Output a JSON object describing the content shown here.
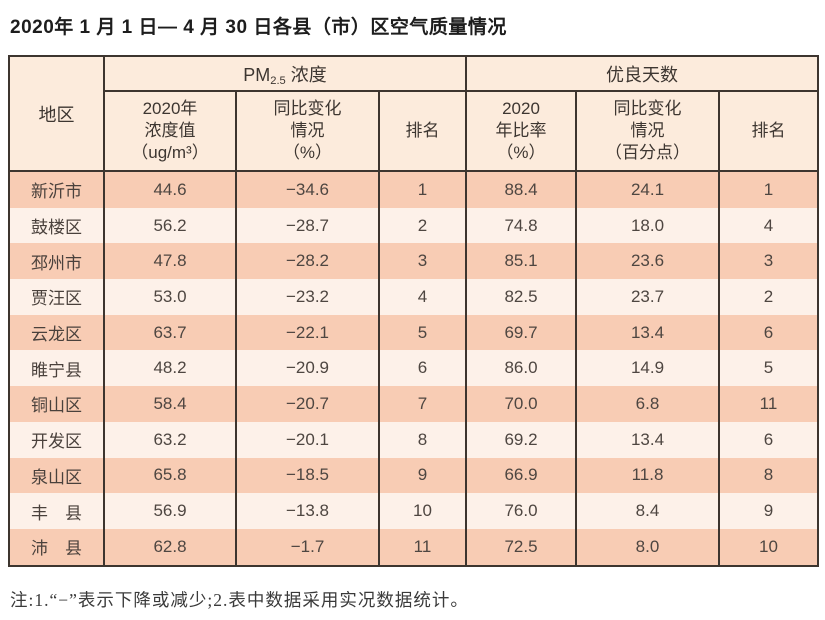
{
  "title": "2020年 1 月 1 日— 4 月 30 日各县（市）区空气质量情况",
  "note": "注:1.“−”表示下降或减少;2.表中数据采用实况数据统计。",
  "table": {
    "header": {
      "region": "地区",
      "pm_group": {
        "prefix": "PM",
        "sub": "2.5",
        "suffix": " 浓度"
      },
      "good_group": "优良天数",
      "pm_value": "2020年\n浓度值\n（ug/m³）",
      "pm_change": "同比变化\n情况\n（%）",
      "pm_rank": "排名",
      "good_rate": "2020\n年比率\n（%）",
      "good_change": "同比变化\n情况\n（百分点）",
      "good_rank": "排名"
    },
    "rows": [
      {
        "region": "新沂市",
        "pm_value": "44.6",
        "pm_change": "−34.6",
        "pm_rank": "1",
        "good_rate": "88.4",
        "good_change": "24.1",
        "good_rank": "1"
      },
      {
        "region": "鼓楼区",
        "pm_value": "56.2",
        "pm_change": "−28.7",
        "pm_rank": "2",
        "good_rate": "74.8",
        "good_change": "18.0",
        "good_rank": "4"
      },
      {
        "region": "邳州市",
        "pm_value": "47.8",
        "pm_change": "−28.2",
        "pm_rank": "3",
        "good_rate": "85.1",
        "good_change": "23.6",
        "good_rank": "3"
      },
      {
        "region": "贾汪区",
        "pm_value": "53.0",
        "pm_change": "−23.2",
        "pm_rank": "4",
        "good_rate": "82.5",
        "good_change": "23.7",
        "good_rank": "2"
      },
      {
        "region": "云龙区",
        "pm_value": "63.7",
        "pm_change": "−22.1",
        "pm_rank": "5",
        "good_rate": "69.7",
        "good_change": "13.4",
        "good_rank": "6"
      },
      {
        "region": "睢宁县",
        "pm_value": "48.2",
        "pm_change": "−20.9",
        "pm_rank": "6",
        "good_rate": "86.0",
        "good_change": "14.9",
        "good_rank": "5"
      },
      {
        "region": "铜山区",
        "pm_value": "58.4",
        "pm_change": "−20.7",
        "pm_rank": "7",
        "good_rate": "70.0",
        "good_change": "6.8",
        "good_rank": "11"
      },
      {
        "region": "开发区",
        "pm_value": "63.2",
        "pm_change": "−20.1",
        "pm_rank": "8",
        "good_rate": "69.2",
        "good_change": "13.4",
        "good_rank": "6"
      },
      {
        "region": "泉山区",
        "pm_value": "65.8",
        "pm_change": "−18.5",
        "pm_rank": "9",
        "good_rate": "66.9",
        "good_change": "11.8",
        "good_rank": "8"
      },
      {
        "region": "丰　县",
        "pm_value": "56.9",
        "pm_change": "−13.8",
        "pm_rank": "10",
        "good_rate": "76.0",
        "good_change": "8.4",
        "good_rank": "9"
      },
      {
        "region": "沛　县",
        "pm_value": "62.8",
        "pm_change": "−1.7",
        "pm_rank": "11",
        "good_rate": "72.5",
        "good_change": "8.0",
        "good_rank": "10"
      }
    ]
  },
  "colors": {
    "stripe_dark": "#f8ccb4",
    "stripe_light": "#fdf1e9",
    "header_bg": "#fcebdc",
    "grid_line": "#3d352f"
  }
}
